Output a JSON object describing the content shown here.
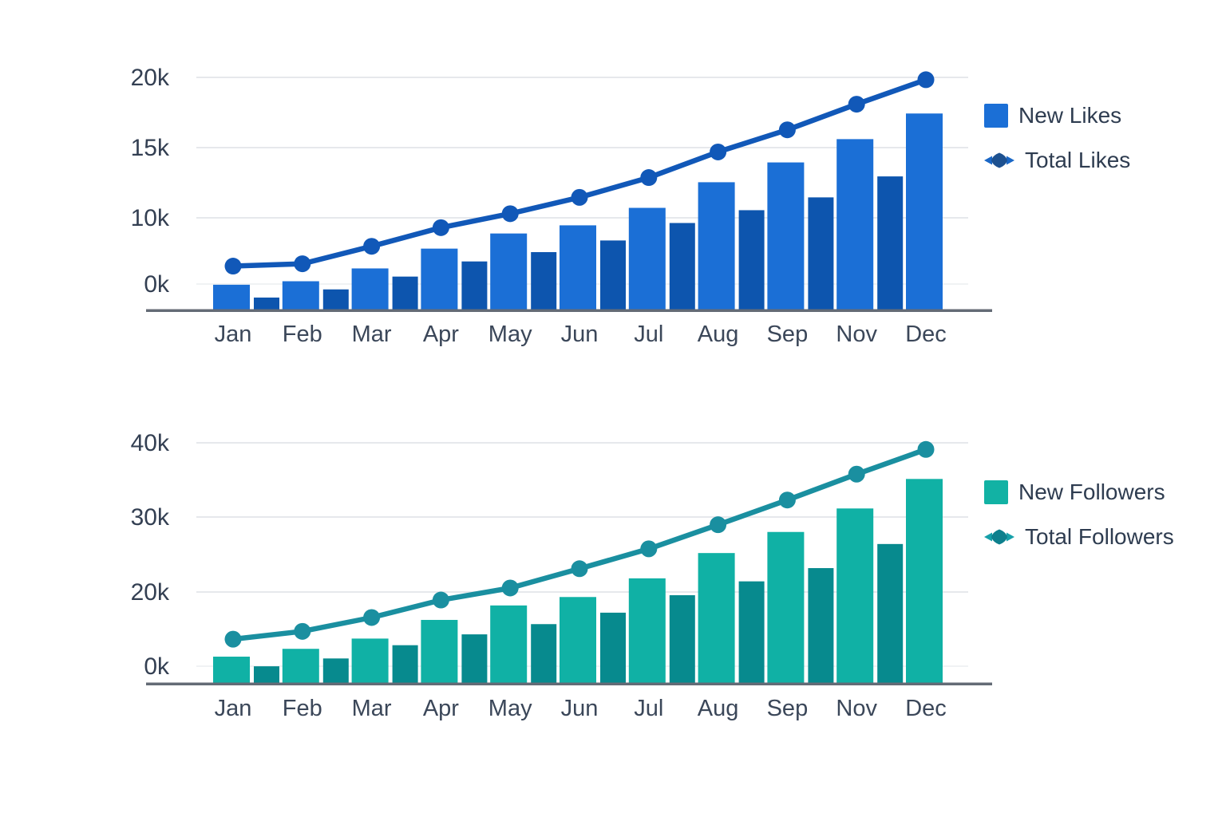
{
  "page": {
    "background": "#ffffff"
  },
  "chart_data": [
    {
      "id": "likes-chart",
      "type": "combo-bar-line",
      "categories": [
        "Jan",
        "Feb",
        "Mar",
        "Apr",
        "May",
        "Jun",
        "Jul",
        "Aug",
        "Sep",
        "Nov",
        "Dec"
      ],
      "y_ticks": [
        "20k",
        "15k",
        "10k",
        "0k"
      ],
      "ylim": [
        0,
        20000
      ],
      "grid": true,
      "legend_position": "right",
      "legend": [
        {
          "label": "New Likes",
          "swatch": "square",
          "color": "#1b6fd6"
        },
        {
          "label": "Total Likes",
          "swatch": "diamond-line",
          "diamond_color": "#1d5190",
          "wing_color": "#1a67c6"
        }
      ],
      "series": [
        {
          "name": "New Likes",
          "type": "bar",
          "in_legend": true,
          "color": "#1b6fd6",
          "values": [
            2200,
            2500,
            3600,
            5300,
            6600,
            7300,
            8800,
            11000,
            12700,
            14700,
            16900
          ]
        },
        {
          "name": "",
          "type": "bar",
          "in_legend": false,
          "color": "#0d55ae",
          "values": [
            1100,
            1800,
            2900,
            4200,
            5000,
            6000,
            7500,
            8600,
            9700,
            11500,
            null
          ]
        },
        {
          "name": "Total Likes",
          "type": "line",
          "in_legend": true,
          "color": "#1158b8",
          "values": [
            3800,
            4000,
            5500,
            7100,
            8300,
            9700,
            11400,
            13600,
            15500,
            17700,
            19800
          ]
        }
      ]
    },
    {
      "id": "followers-chart",
      "type": "combo-bar-line",
      "categories": [
        "Jan",
        "Feb",
        "Mar",
        "Apr",
        "May",
        "Jun",
        "Jul",
        "Aug",
        "Sep",
        "Nov",
        "Dec"
      ],
      "y_ticks": [
        "40k",
        "30k",
        "20k",
        "0k"
      ],
      "ylim": [
        0,
        40000
      ],
      "grid": true,
      "legend_position": "right",
      "legend": [
        {
          "label": "New Followers",
          "swatch": "square",
          "color": "#12b2a4"
        },
        {
          "label": "Total Followers",
          "swatch": "diamond-line",
          "diamond_color": "#0d808d",
          "wing_color": "#16a0a9"
        }
      ],
      "series": [
        {
          "name": "New Followers",
          "type": "bar",
          "in_legend": true,
          "color": "#10b1a5",
          "values": [
            4500,
            5800,
            7500,
            10600,
            13000,
            14400,
            17500,
            21700,
            25200,
            29100,
            34000
          ]
        },
        {
          "name": "",
          "type": "bar",
          "in_legend": false,
          "color": "#078a8e",
          "values": [
            2900,
            4200,
            6400,
            8200,
            9900,
            11800,
            14700,
            17000,
            19200,
            23200,
            null
          ]
        },
        {
          "name": "Total Followers",
          "type": "line",
          "in_legend": true,
          "color": "#1a8fa0",
          "values": [
            7400,
            8700,
            11000,
            13900,
            15900,
            19100,
            22400,
            26400,
            30500,
            34800,
            38900
          ]
        }
      ]
    }
  ]
}
